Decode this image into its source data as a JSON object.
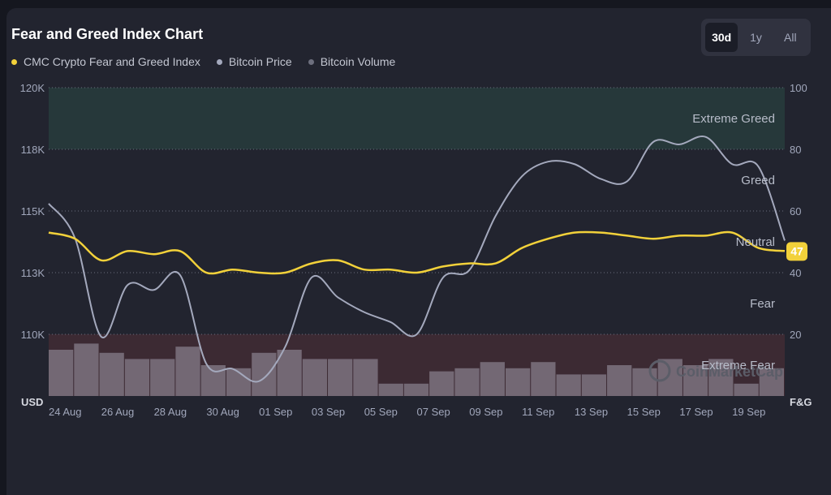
{
  "header": {
    "title": "Fear and Greed Index Chart",
    "ranges": [
      "30d",
      "1y",
      "All"
    ],
    "active_range": "30d"
  },
  "legend": [
    {
      "label": "CMC Crypto Fear and Greed Index",
      "color": "#f2d13a"
    },
    {
      "label": "Bitcoin Price",
      "color": "#a4a9bd"
    },
    {
      "label": "Bitcoin Volume",
      "color": "#6d6f7e"
    }
  ],
  "watermark": "CoinMarketCap",
  "colors": {
    "index_line": "#f2d13a",
    "price_line": "#a4a9bd",
    "volume_bar": "#7d7380",
    "extreme_greed_zone": "#26383a",
    "extreme_fear_zone": "#3c2a33",
    "badge": "#f2d13a"
  },
  "chart_data": {
    "type": "line",
    "x": [
      "24 Aug",
      "25 Aug",
      "26 Aug",
      "27 Aug",
      "28 Aug",
      "29 Aug",
      "30 Aug",
      "31 Aug",
      "01 Sep",
      "02 Sep",
      "03 Sep",
      "04 Sep",
      "05 Sep",
      "06 Sep",
      "07 Sep",
      "08 Sep",
      "09 Sep",
      "10 Sep",
      "11 Sep",
      "12 Sep",
      "13 Sep",
      "14 Sep",
      "15 Sep",
      "16 Sep",
      "17 Sep",
      "18 Sep",
      "19 Sep",
      "20 Sep",
      "21 Sep"
    ],
    "x_tick_labels": [
      "24 Aug",
      "26 Aug",
      "28 Aug",
      "30 Aug",
      "01 Sep",
      "03 Sep",
      "05 Sep",
      "07 Sep",
      "09 Sep",
      "11 Sep",
      "13 Sep",
      "15 Sep",
      "17 Sep",
      "19 Sep"
    ],
    "left_axis": {
      "label": "USD",
      "ticks": [
        "120K",
        "118K",
        "115K",
        "113K",
        "110K"
      ],
      "range": [
        107500,
        120000
      ]
    },
    "right_axis": {
      "label": "F&G",
      "ticks": [
        "100",
        "80",
        "60",
        "40",
        "20"
      ],
      "range": [
        0,
        100
      ]
    },
    "zones": [
      {
        "label": "Extreme Greed",
        "from": 80,
        "to": 100
      },
      {
        "label": "Greed",
        "from": 60,
        "to": 80
      },
      {
        "label": "Neutral",
        "from": 40,
        "to": 60
      },
      {
        "label": "Fear",
        "from": 20,
        "to": 40
      },
      {
        "label": "Extreme Fear",
        "from": 0,
        "to": 20
      }
    ],
    "series": [
      {
        "name": "CMC Crypto Fear and Greed Index",
        "axis": "right",
        "values": [
          53,
          51,
          44,
          47,
          46,
          47,
          40,
          41,
          40,
          40,
          43,
          44,
          41,
          41,
          40,
          42,
          43,
          43,
          48,
          51,
          53,
          53,
          52,
          51,
          52,
          52,
          53,
          48,
          47
        ]
      },
      {
        "name": "Bitcoin Price",
        "axis": "left",
        "values": [
          115300,
          113900,
          109900,
          112000,
          111800,
          112400,
          108800,
          108600,
          108100,
          109500,
          112300,
          111500,
          110900,
          110500,
          110000,
          112300,
          112600,
          114800,
          116400,
          117000,
          116900,
          116300,
          116200,
          117800,
          117700,
          118000,
          116900,
          116800,
          113800
        ]
      },
      {
        "name": "Bitcoin Volume",
        "axis": "right",
        "relative_to": "F&G scale (unlabeled volume)",
        "values": [
          15,
          17,
          14,
          12,
          12,
          16,
          10,
          9,
          14,
          15,
          12,
          12,
          12,
          4,
          4,
          8,
          9,
          11,
          9,
          11,
          7,
          7,
          10,
          9,
          12,
          10,
          12,
          4,
          9
        ]
      }
    ],
    "current_index_value": "47"
  }
}
